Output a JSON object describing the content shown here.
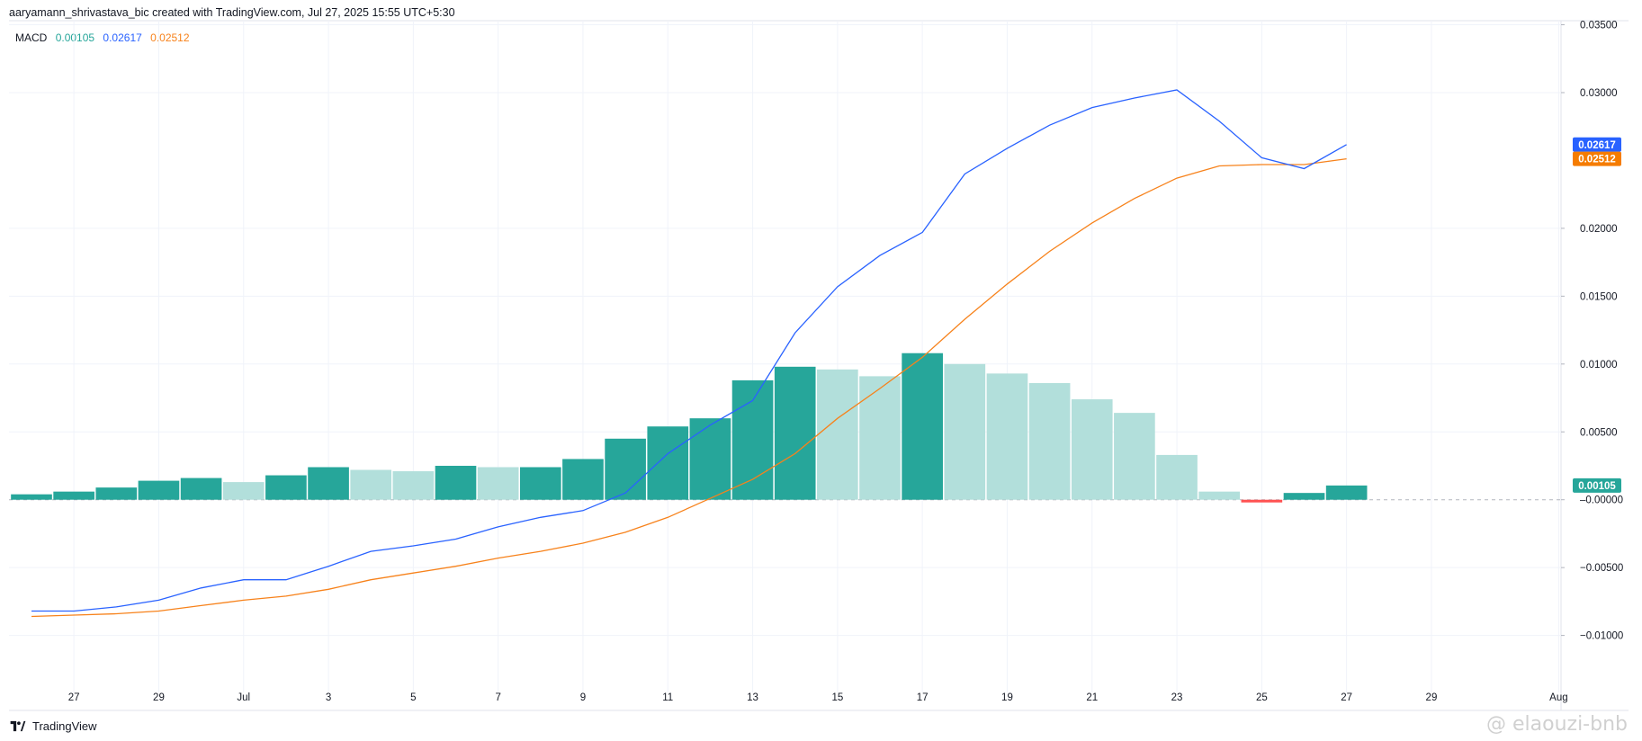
{
  "header": {
    "text": "aaryamann_shrivastava_bic created with TradingView.com, Jul 27, 2025 15:55 UTC+5:30"
  },
  "legend": {
    "name": "MACD",
    "histogram_value": "0.00105",
    "macd_value": "0.02617",
    "signal_value": "0.02512"
  },
  "brand": {
    "label": "TradingView",
    "icon": "tradingview-logo-icon"
  },
  "watermark": {
    "text": "@ elaouzi-bnb"
  },
  "colors": {
    "macd_line": "#2962ff",
    "signal_line": "#f7821b",
    "hist_pos_strong": "#26a69a",
    "hist_pos_weak": "#b2dfdb",
    "hist_neg_strong": "#ff5252",
    "hist_neg_weak": "#f57c00",
    "grid": "#f0f3fa",
    "text": "#131722",
    "legend_hist": "#26a69a",
    "legend_macd": "#2962ff",
    "legend_signal": "#f7821b"
  },
  "chart_data": {
    "type": "line",
    "title": "",
    "xlabel": "",
    "ylabel": "",
    "x_ticks": [
      "27",
      "29",
      "Jul",
      "3",
      "5",
      "7",
      "9",
      "11",
      "13",
      "15",
      "17",
      "19",
      "21",
      "23",
      "25",
      "27",
      "29",
      "Aug"
    ],
    "y_ticks": [
      "0.03500",
      "0.03000",
      "0.02000",
      "0.01500",
      "0.01000",
      "0.00500",
      "–0.00000",
      "−0.00500",
      "−0.01000"
    ],
    "y_tick_values": [
      0.035,
      0.03,
      0.02,
      0.015,
      0.01,
      0.005,
      0,
      -0.005,
      -0.01
    ],
    "ylim": [
      -0.0142,
      0.0353
    ],
    "grid": true,
    "x": [
      "Jun 26",
      "Jun 27",
      "Jun 28",
      "Jun 29",
      "Jun 30",
      "Jul 1",
      "Jul 2",
      "Jul 3",
      "Jul 4",
      "Jul 5",
      "Jul 6",
      "Jul 7",
      "Jul 8",
      "Jul 9",
      "Jul 10",
      "Jul 11",
      "Jul 12",
      "Jul 13",
      "Jul 14",
      "Jul 15",
      "Jul 16",
      "Jul 17",
      "Jul 18",
      "Jul 19",
      "Jul 20",
      "Jul 21",
      "Jul 22",
      "Jul 23",
      "Jul 24",
      "Jul 25",
      "Jul 26",
      "Jul 27"
    ],
    "series": [
      {
        "name": "Histogram",
        "kind": "histogram",
        "values": [
          0.0004,
          0.0006,
          0.0009,
          0.0014,
          0.0016,
          0.0013,
          0.0018,
          0.0024,
          0.0022,
          0.0021,
          0.0025,
          0.0024,
          0.0024,
          0.003,
          0.0045,
          0.0054,
          0.006,
          0.0088,
          0.0098,
          0.0096,
          0.0091,
          0.0108,
          0.01,
          0.0093,
          0.0086,
          0.0074,
          0.0064,
          0.0033,
          0.0006,
          -0.0002,
          0.0005,
          0.00105
        ]
      },
      {
        "name": "MACD",
        "kind": "line",
        "values": [
          -0.0082,
          -0.0082,
          -0.0079,
          -0.0074,
          -0.0065,
          -0.0059,
          -0.0059,
          -0.0049,
          -0.0038,
          -0.0034,
          -0.0029,
          -0.002,
          -0.0013,
          -0.0008,
          0.0005,
          0.0034,
          0.0055,
          0.0073,
          0.0123,
          0.0157,
          0.018,
          0.0197,
          0.024,
          0.0259,
          0.0276,
          0.0289,
          0.0296,
          0.0302,
          0.0279,
          0.0252,
          0.0244,
          0.02617
        ]
      },
      {
        "name": "Signal",
        "kind": "line",
        "values": [
          -0.0086,
          -0.0085,
          -0.0084,
          -0.0082,
          -0.0078,
          -0.0074,
          -0.0071,
          -0.0066,
          -0.0059,
          -0.0054,
          -0.0049,
          -0.0043,
          -0.0038,
          -0.0032,
          -0.0024,
          -0.0013,
          0.0001,
          0.0015,
          0.0034,
          0.006,
          0.0082,
          0.0105,
          0.0133,
          0.0159,
          0.0183,
          0.0204,
          0.0222,
          0.0237,
          0.0246,
          0.0247,
          0.0247,
          0.02512
        ]
      }
    ],
    "price_badges": [
      {
        "label": "0.02617",
        "value": 0.02617,
        "color": "#2962ff"
      },
      {
        "label": "0.02512",
        "value": 0.02512,
        "color": "#f57c00"
      },
      {
        "label": "0.00105",
        "value": 0.00105,
        "color": "#26a69a"
      }
    ]
  }
}
